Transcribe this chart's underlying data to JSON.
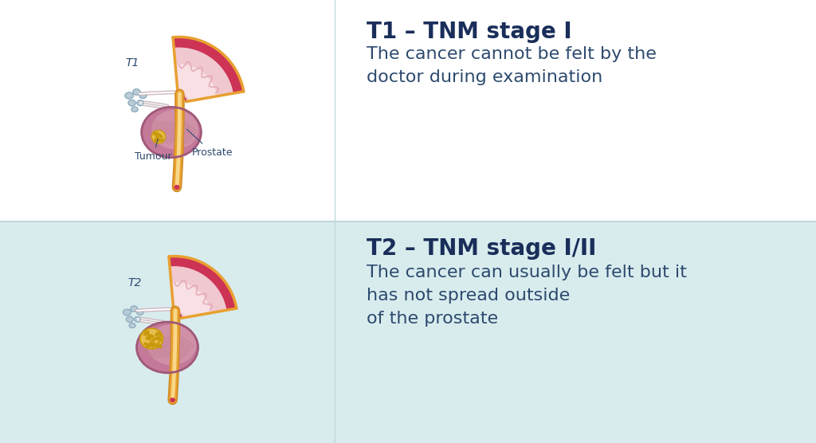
{
  "bg_top": "#ffffff",
  "bg_bottom": "#d8ecee",
  "divider_color": "#c0d8dc",
  "text_color_heading": "#1a2e5a",
  "text_color_body": "#2d4a6e",
  "label_color": "#2d4a6e",
  "title1": "T1 – TNM stage I",
  "body1": "The cancer cannot be felt by the\ndoctor during examination",
  "title2": "T2 – TNM stage I/II",
  "body2": "The cancer can usually be felt but it\nhas not spread outside\nof the prostate",
  "label_t1": "T1",
  "label_t2": "T2",
  "label_tumour": "Tumour",
  "label_prostate": "Prostate",
  "heading_fontsize": 20,
  "body_fontsize": 16,
  "label_fontsize": 10,
  "prostate_color": "#c4799a",
  "prostate_outline": "#a05878",
  "prostate_inner": "#b87090",
  "tissue_red": "#cc3355",
  "tissue_pink_light": "#f0c8d0",
  "tissue_pink_mid": "#e8b0bc",
  "urethra_orange": "#e8a030",
  "urethra_light": "#f8d888",
  "urethra_dark": "#d08820",
  "seminal_blue": "#b8ccd8",
  "seminal_outline": "#8aaabb",
  "duct_color": "#d0b8c0",
  "tumour_yellow": "#e8c050",
  "tumour_dark": "#c8980a",
  "texture_color": "#a06070",
  "stripe_color": "#c08090"
}
